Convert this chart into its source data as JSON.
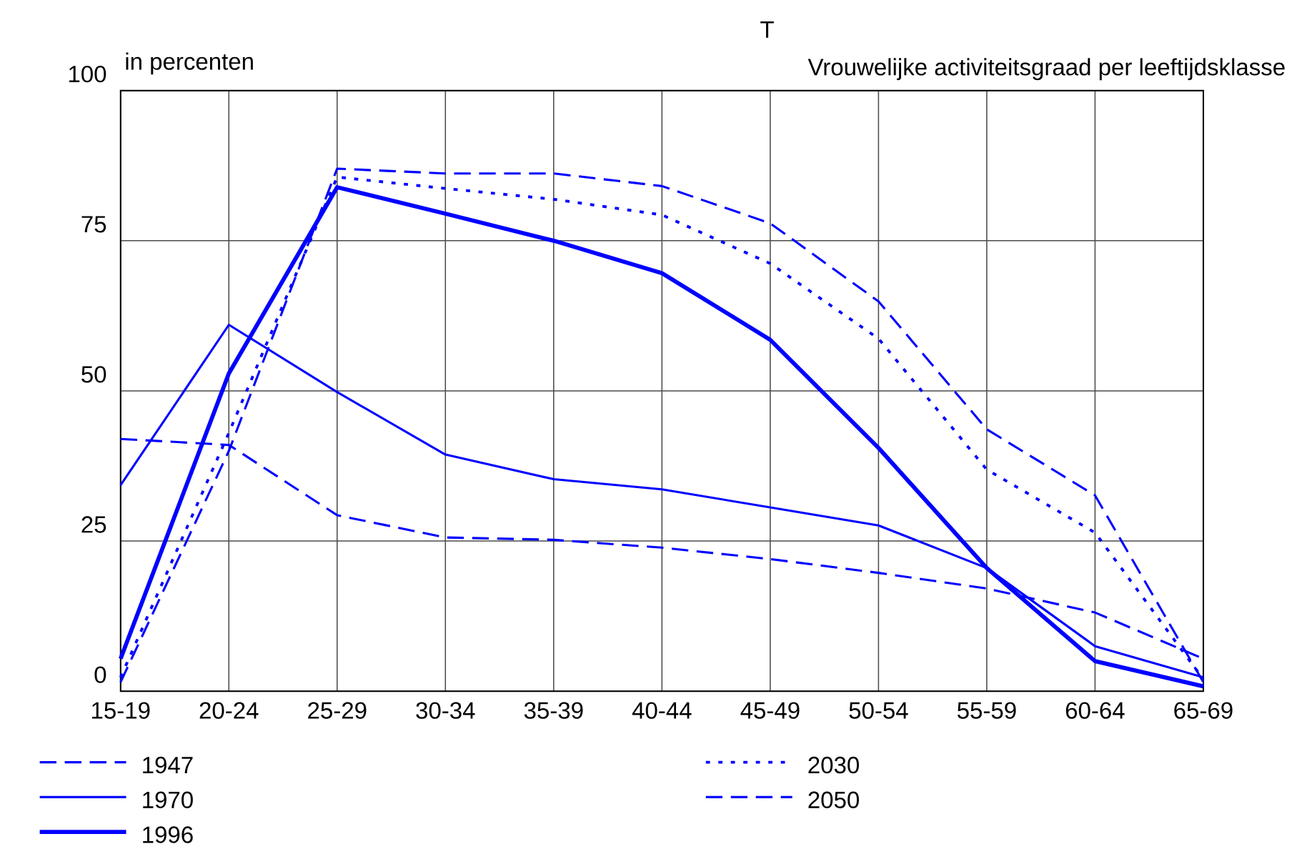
{
  "chart_data": {
    "type": "line",
    "title": "Vrouwelijke activiteitsgraad per leeftijdsklasse",
    "annotations": [
      "T"
    ],
    "ylabel": "in percenten",
    "categories": [
      "15-19",
      "20-24",
      "25-29",
      "30-34",
      "35-39",
      "40-44",
      "45-49",
      "50-54",
      "55-59",
      "60-64",
      "65-69"
    ],
    "ylim": [
      0,
      100
    ],
    "yticks": [
      0,
      25,
      50,
      75,
      100
    ],
    "grid": true,
    "legend": "bottom",
    "marker": "none",
    "series": [
      {
        "name": "1947",
        "color": "#0000ff",
        "line_style": "dashed",
        "values": [
          42,
          41,
          29.3,
          25.6,
          25.2,
          23.9,
          22,
          19.7,
          17.1,
          13.1,
          5.4
        ]
      },
      {
        "name": "1970",
        "color": "#0000ff",
        "line_style": "solid",
        "values": [
          34.3,
          61,
          49.8,
          39.4,
          35.3,
          33.6,
          30.6,
          27.6,
          20.5,
          7.5,
          2.3
        ]
      },
      {
        "name": "1996",
        "color": "#0000ff",
        "line_style": "solid",
        "values": [
          5.4,
          52.9,
          83.9,
          79.5,
          75,
          69.6,
          58.5,
          40.5,
          20.5,
          5,
          0.8
        ]
      },
      {
        "name": "2030",
        "color": "#0000ff",
        "line_style": "dotted",
        "values": [
          2.3,
          43,
          85.6,
          83.7,
          81.9,
          79.3,
          71.2,
          58.7,
          36.9,
          26.4,
          2
        ]
      },
      {
        "name": "2050",
        "color": "#0000ff",
        "line_style": "dashed",
        "values": [
          1.5,
          40,
          87,
          86.2,
          86.2,
          84.1,
          77.9,
          64.9,
          43.6,
          32.6,
          1.5
        ]
      }
    ]
  }
}
